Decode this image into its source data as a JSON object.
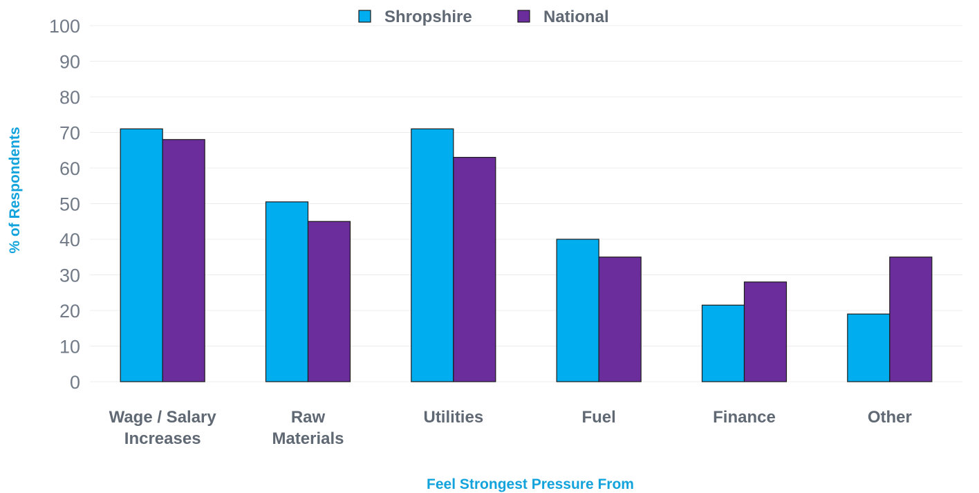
{
  "colors": {
    "shropshire": "#00adef",
    "national": "#6b2d9b",
    "axis_title": "#12a3dc",
    "grid": "#ececec",
    "bar_stroke": "#1a1a1a"
  },
  "chart_data": {
    "type": "bar",
    "categories": [
      [
        "Wage / Salary",
        "Increases"
      ],
      [
        "Raw",
        "Materials"
      ],
      [
        "Utilities"
      ],
      [
        "Fuel"
      ],
      [
        "Finance"
      ],
      [
        "Other"
      ]
    ],
    "series": [
      {
        "name": "Shropshire",
        "values": [
          71,
          50.5,
          71,
          40,
          21.5,
          19
        ]
      },
      {
        "name": "National",
        "values": [
          68,
          45,
          63,
          35,
          28,
          35
        ]
      }
    ],
    "xlabel": "Feel Strongest Pressure From",
    "ylabel": "% of Respondents",
    "ylim": [
      0,
      100
    ],
    "yticks": [
      "0",
      "10",
      "20",
      "30",
      "40",
      "50",
      "60",
      "70",
      "80",
      "90",
      "100"
    ],
    "grid": true,
    "legend_position": "top-center"
  }
}
